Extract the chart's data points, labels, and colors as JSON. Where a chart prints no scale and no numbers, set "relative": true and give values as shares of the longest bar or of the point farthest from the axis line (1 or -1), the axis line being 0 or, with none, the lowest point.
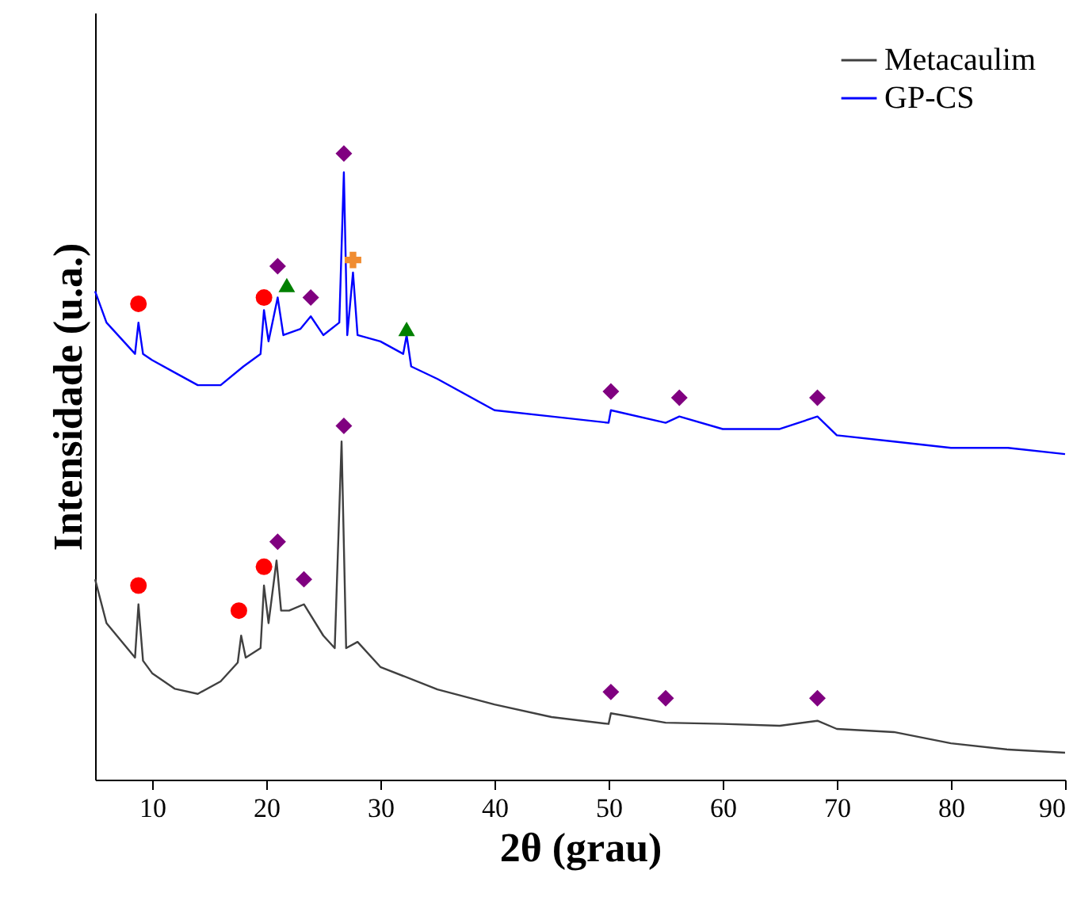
{
  "chart_data": {
    "type": "line",
    "relative": true,
    "xlabel": "2θ (grau)",
    "ylabel": "Intensidade (u.a.)",
    "xlim": [
      5,
      90
    ],
    "xticks": [
      10,
      20,
      30,
      40,
      50,
      60,
      70,
      80,
      90
    ],
    "legend": "top right",
    "grid": false,
    "series": [
      {
        "name": "Metacaulim",
        "color": "#404040",
        "x": [
          5,
          6,
          8.5,
          8.8,
          9.2,
          10,
          12,
          14,
          16,
          17.5,
          17.8,
          18.2,
          19.5,
          19.8,
          20.2,
          20.9,
          21.3,
          22,
          23.3,
          25,
          26,
          26.6,
          27,
          28,
          30,
          35,
          40,
          45,
          50,
          50.2,
          55,
          60,
          65,
          68.3,
          70,
          75,
          80,
          85,
          90
        ],
        "values": [
          0.32,
          0.25,
          0.195,
          0.28,
          0.19,
          0.17,
          0.145,
          0.137,
          0.157,
          0.187,
          0.23,
          0.195,
          0.21,
          0.31,
          0.25,
          0.35,
          0.27,
          0.27,
          0.28,
          0.23,
          0.21,
          0.54,
          0.21,
          0.22,
          0.18,
          0.144,
          0.12,
          0.1,
          0.089,
          0.106,
          0.091,
          0.089,
          0.086,
          0.094,
          0.081,
          0.076,
          0.058,
          0.048,
          0.043
        ]
      },
      {
        "name": "GP-CS",
        "color": "#0000ff",
        "x": [
          5,
          6,
          8.5,
          8.8,
          9.2,
          10,
          12,
          14,
          16,
          18,
          19.5,
          19.8,
          20.2,
          21,
          21.5,
          23,
          23.9,
          25,
          26.4,
          26.8,
          27.1,
          27.6,
          28,
          30,
          32,
          32.3,
          32.7,
          35,
          40,
          45,
          50,
          50.2,
          55,
          56.2,
          60,
          65,
          68.3,
          70,
          75,
          80,
          85,
          90
        ],
        "values": [
          0.78,
          0.73,
          0.68,
          0.73,
          0.68,
          0.67,
          0.65,
          0.63,
          0.63,
          0.66,
          0.68,
          0.75,
          0.7,
          0.77,
          0.71,
          0.72,
          0.74,
          0.71,
          0.73,
          0.97,
          0.71,
          0.81,
          0.71,
          0.7,
          0.68,
          0.71,
          0.66,
          0.64,
          0.59,
          0.58,
          0.57,
          0.59,
          0.57,
          0.58,
          0.56,
          0.56,
          0.58,
          0.55,
          0.54,
          0.53,
          0.53,
          0.52
        ]
      },
      {
        "type": "scatter",
        "marker": "circle",
        "color": "#ff0000",
        "x": [
          8.8,
          19.8,
          8.8,
          17.6,
          19.8
        ],
        "values": [
          0.76,
          0.77,
          0.31,
          0.27,
          0.34
        ]
      },
      {
        "type": "scatter",
        "marker": "diamond",
        "color": "#800080",
        "x": [
          21,
          23.9,
          26.8,
          50.2,
          56.2,
          68.3,
          21,
          23.3,
          26.8,
          50.2,
          55,
          68.3
        ],
        "values": [
          0.82,
          0.77,
          1,
          0.62,
          0.61,
          0.61,
          0.38,
          0.32,
          0.565,
          0.14,
          0.13,
          0.13
        ]
      },
      {
        "type": "scatter",
        "marker": "triangle",
        "color": "#008000",
        "x": [
          21.8,
          32.3
        ],
        "values": [
          0.79,
          0.72
        ]
      },
      {
        "type": "scatter",
        "marker": "cross",
        "color": "#f08c30",
        "x": [
          27.6
        ],
        "values": [
          0.83
        ]
      }
    ]
  }
}
